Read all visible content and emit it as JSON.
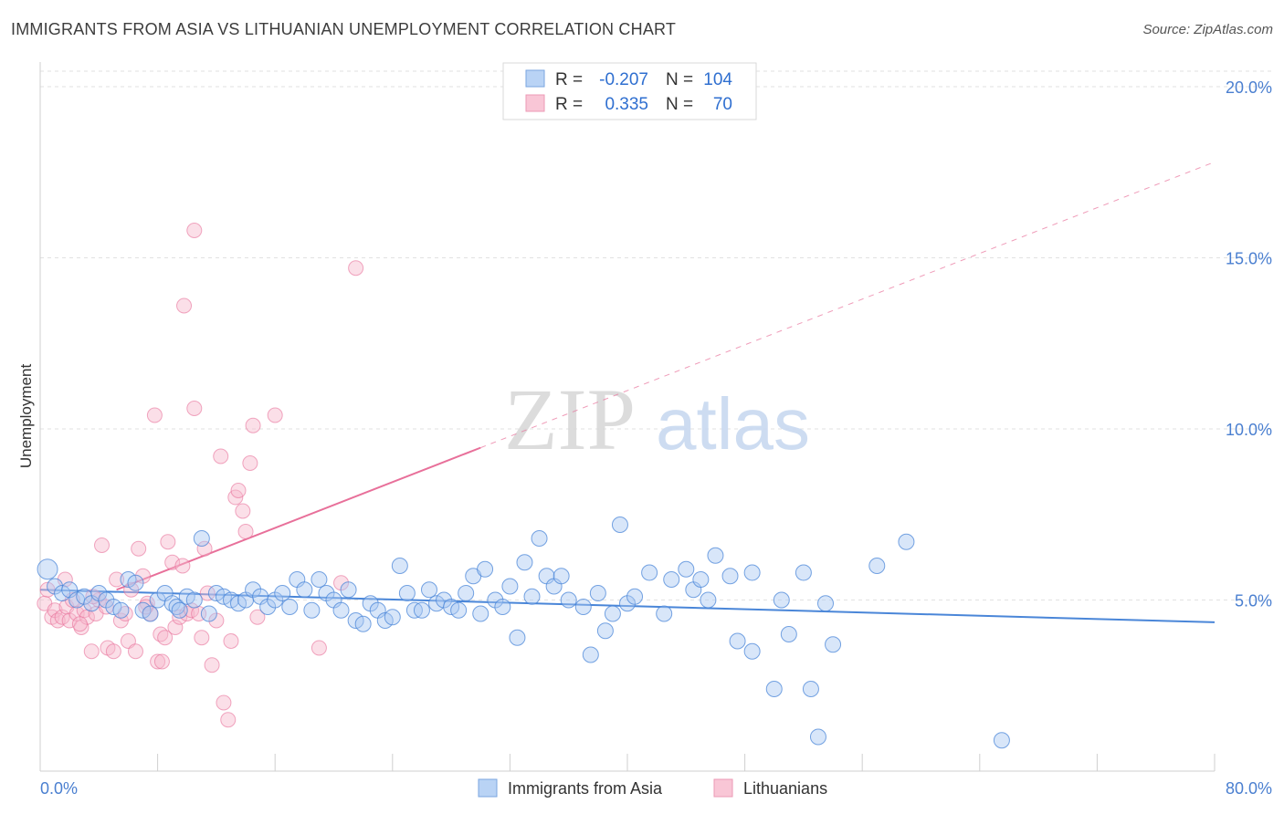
{
  "header": {
    "title": "IMMIGRANTS FROM ASIA VS LITHUANIAN UNEMPLOYMENT CORRELATION CHART",
    "source": "Source: ZipAtlas.com"
  },
  "watermark": {
    "zip": "ZIP",
    "atlas": "atlas"
  },
  "colors": {
    "blue": "#4a86d8",
    "blue_fill": "#a9c8f2",
    "pink": "#e8709a",
    "pink_fill": "#f6b8cc",
    "axis_text": "#4a7fd0",
    "grid": "#e2e2e2"
  },
  "legend_top": {
    "rows": [
      {
        "r_label": "R =",
        "r_value": "-0.207",
        "n_label": "N =",
        "n_value": "104"
      },
      {
        "r_label": "R =",
        "r_value": "0.335",
        "n_label": "N =",
        "n_value": "70"
      }
    ]
  },
  "legend_bottom": {
    "items": [
      "Immigrants from Asia",
      "Lithuanians"
    ]
  },
  "chart_data": {
    "type": "scatter",
    "title": "IMMIGRANTS FROM ASIA VS LITHUANIAN UNEMPLOYMENT CORRELATION CHART",
    "xlabel": "",
    "ylabel": "Unemployment",
    "xlim": [
      0,
      80
    ],
    "ylim": [
      0,
      20
    ],
    "x_tick_labels": [
      "0.0%",
      "80.0%"
    ],
    "y_tick_labels": [
      "5.0%",
      "10.0%",
      "15.0%",
      "20.0%"
    ],
    "y_ticks": [
      5,
      10,
      15,
      20
    ],
    "grid": true,
    "legend_position": "top-center",
    "series": [
      {
        "name": "Immigrants from Asia",
        "color": "#4a86d8",
        "r": -0.207,
        "n": 104,
        "trend": {
          "x": [
            0,
            80
          ],
          "y": [
            5.3,
            4.35
          ]
        },
        "points": [
          [
            0.5,
            5.9
          ],
          [
            1.0,
            5.4
          ],
          [
            1.5,
            5.2
          ],
          [
            2.0,
            5.3
          ],
          [
            2.5,
            5.0
          ],
          [
            3.0,
            5.1
          ],
          [
            3.5,
            4.9
          ],
          [
            4.0,
            5.2
          ],
          [
            4.5,
            5.0
          ],
          [
            5.0,
            4.8
          ],
          [
            5.5,
            4.7
          ],
          [
            6.0,
            5.6
          ],
          [
            6.5,
            5.5
          ],
          [
            7.0,
            4.7
          ],
          [
            7.5,
            4.6
          ],
          [
            8.0,
            5.0
          ],
          [
            8.5,
            5.2
          ],
          [
            9.0,
            4.9
          ],
          [
            9.3,
            4.8
          ],
          [
            9.5,
            4.7
          ],
          [
            10.0,
            5.1
          ],
          [
            10.5,
            5.0
          ],
          [
            11.0,
            6.8
          ],
          [
            11.5,
            4.6
          ],
          [
            12.0,
            5.2
          ],
          [
            12.5,
            5.1
          ],
          [
            13.0,
            5.0
          ],
          [
            13.5,
            4.9
          ],
          [
            14.0,
            5.0
          ],
          [
            14.5,
            5.3
          ],
          [
            15.0,
            5.1
          ],
          [
            15.5,
            4.8
          ],
          [
            16.0,
            5.0
          ],
          [
            16.5,
            5.2
          ],
          [
            17.0,
            4.8
          ],
          [
            17.5,
            5.6
          ],
          [
            18.0,
            5.3
          ],
          [
            18.5,
            4.7
          ],
          [
            19.0,
            5.6
          ],
          [
            19.5,
            5.2
          ],
          [
            20.0,
            5.0
          ],
          [
            20.5,
            4.7
          ],
          [
            21.0,
            5.3
          ],
          [
            21.5,
            4.4
          ],
          [
            22.0,
            4.3
          ],
          [
            22.5,
            4.9
          ],
          [
            23.0,
            4.7
          ],
          [
            23.5,
            4.4
          ],
          [
            24.0,
            4.5
          ],
          [
            24.5,
            6.0
          ],
          [
            25.0,
            5.2
          ],
          [
            25.5,
            4.7
          ],
          [
            26.0,
            4.7
          ],
          [
            26.5,
            5.3
          ],
          [
            27.0,
            4.9
          ],
          [
            27.5,
            5.0
          ],
          [
            28.0,
            4.8
          ],
          [
            28.5,
            4.7
          ],
          [
            29.0,
            5.2
          ],
          [
            29.5,
            5.7
          ],
          [
            30.0,
            4.6
          ],
          [
            30.3,
            5.9
          ],
          [
            31.0,
            5.0
          ],
          [
            31.5,
            4.8
          ],
          [
            32.0,
            5.4
          ],
          [
            32.5,
            3.9
          ],
          [
            33.0,
            6.1
          ],
          [
            33.5,
            5.1
          ],
          [
            34.0,
            6.8
          ],
          [
            34.5,
            5.7
          ],
          [
            35.0,
            5.4
          ],
          [
            35.5,
            5.7
          ],
          [
            36.0,
            5.0
          ],
          [
            37.0,
            4.8
          ],
          [
            37.5,
            3.4
          ],
          [
            38.0,
            5.2
          ],
          [
            38.5,
            4.1
          ],
          [
            39.0,
            4.6
          ],
          [
            39.5,
            7.2
          ],
          [
            40.0,
            4.9
          ],
          [
            40.5,
            5.1
          ],
          [
            41.5,
            5.8
          ],
          [
            42.5,
            4.6
          ],
          [
            43.0,
            5.6
          ],
          [
            44.0,
            5.9
          ],
          [
            44.5,
            5.3
          ],
          [
            45.0,
            5.6
          ],
          [
            45.5,
            5.0
          ],
          [
            46.0,
            6.3
          ],
          [
            47.0,
            5.7
          ],
          [
            47.5,
            3.8
          ],
          [
            48.5,
            5.8
          ],
          [
            48.5,
            3.5
          ],
          [
            50.0,
            2.4
          ],
          [
            51.0,
            4.0
          ],
          [
            52.0,
            5.8
          ],
          [
            52.5,
            2.4
          ],
          [
            53.0,
            1.0
          ],
          [
            53.5,
            4.9
          ],
          [
            54.0,
            3.7
          ],
          [
            57.0,
            6.0
          ],
          [
            59.0,
            6.7
          ],
          [
            65.5,
            0.9
          ],
          [
            50.5,
            5.0
          ]
        ]
      },
      {
        "name": "Lithuanians",
        "color": "#e8709a",
        "r": 0.335,
        "n": 70,
        "trend": {
          "x": [
            5.2,
            30.0
          ],
          "y": [
            5.3,
            9.45
          ]
        },
        "trend_dashed": {
          "x": [
            30.0,
            80.0
          ],
          "y": [
            9.45,
            17.8
          ]
        },
        "points": [
          [
            0.3,
            4.9
          ],
          [
            0.5,
            5.3
          ],
          [
            0.8,
            4.5
          ],
          [
            1.0,
            4.7
          ],
          [
            1.2,
            4.4
          ],
          [
            1.5,
            4.5
          ],
          [
            1.8,
            4.8
          ],
          [
            2.0,
            4.4
          ],
          [
            2.2,
            5.0
          ],
          [
            2.5,
            4.6
          ],
          [
            2.8,
            4.2
          ],
          [
            3.0,
            4.7
          ],
          [
            3.2,
            4.5
          ],
          [
            3.5,
            3.5
          ],
          [
            3.8,
            4.6
          ],
          [
            4.0,
            5.0
          ],
          [
            4.2,
            6.6
          ],
          [
            4.5,
            4.8
          ],
          [
            4.6,
            3.6
          ],
          [
            5.0,
            3.5
          ],
          [
            5.2,
            5.6
          ],
          [
            5.5,
            4.4
          ],
          [
            5.8,
            4.6
          ],
          [
            6.0,
            3.8
          ],
          [
            6.2,
            5.3
          ],
          [
            6.5,
            3.5
          ],
          [
            6.7,
            6.5
          ],
          [
            7.0,
            5.7
          ],
          [
            7.3,
            4.9
          ],
          [
            7.5,
            4.6
          ],
          [
            7.8,
            10.4
          ],
          [
            8.0,
            3.2
          ],
          [
            8.2,
            4.0
          ],
          [
            8.5,
            3.9
          ],
          [
            8.7,
            6.7
          ],
          [
            9.0,
            6.1
          ],
          [
            9.2,
            4.2
          ],
          [
            9.5,
            4.5
          ],
          [
            9.7,
            6.0
          ],
          [
            10.0,
            4.6
          ],
          [
            10.3,
            4.7
          ],
          [
            10.5,
            10.6
          ],
          [
            10.8,
            4.6
          ],
          [
            11.0,
            3.9
          ],
          [
            11.2,
            6.5
          ],
          [
            11.4,
            5.2
          ],
          [
            11.7,
            3.1
          ],
          [
            12.0,
            4.4
          ],
          [
            12.3,
            9.2
          ],
          [
            12.5,
            2.0
          ],
          [
            12.8,
            1.5
          ],
          [
            13.0,
            3.8
          ],
          [
            13.3,
            8.0
          ],
          [
            13.5,
            8.2
          ],
          [
            13.8,
            7.6
          ],
          [
            14.0,
            7.0
          ],
          [
            14.3,
            9.0
          ],
          [
            14.5,
            10.1
          ],
          [
            8.3,
            3.2
          ],
          [
            9.8,
            13.6
          ],
          [
            10.5,
            15.8
          ],
          [
            16.0,
            10.4
          ],
          [
            21.5,
            14.7
          ],
          [
            19.0,
            3.6
          ],
          [
            20.5,
            5.5
          ],
          [
            14.8,
            4.5
          ],
          [
            7.2,
            4.8
          ],
          [
            3.6,
            5.1
          ],
          [
            2.7,
            4.3
          ],
          [
            1.7,
            5.6
          ]
        ]
      }
    ]
  }
}
